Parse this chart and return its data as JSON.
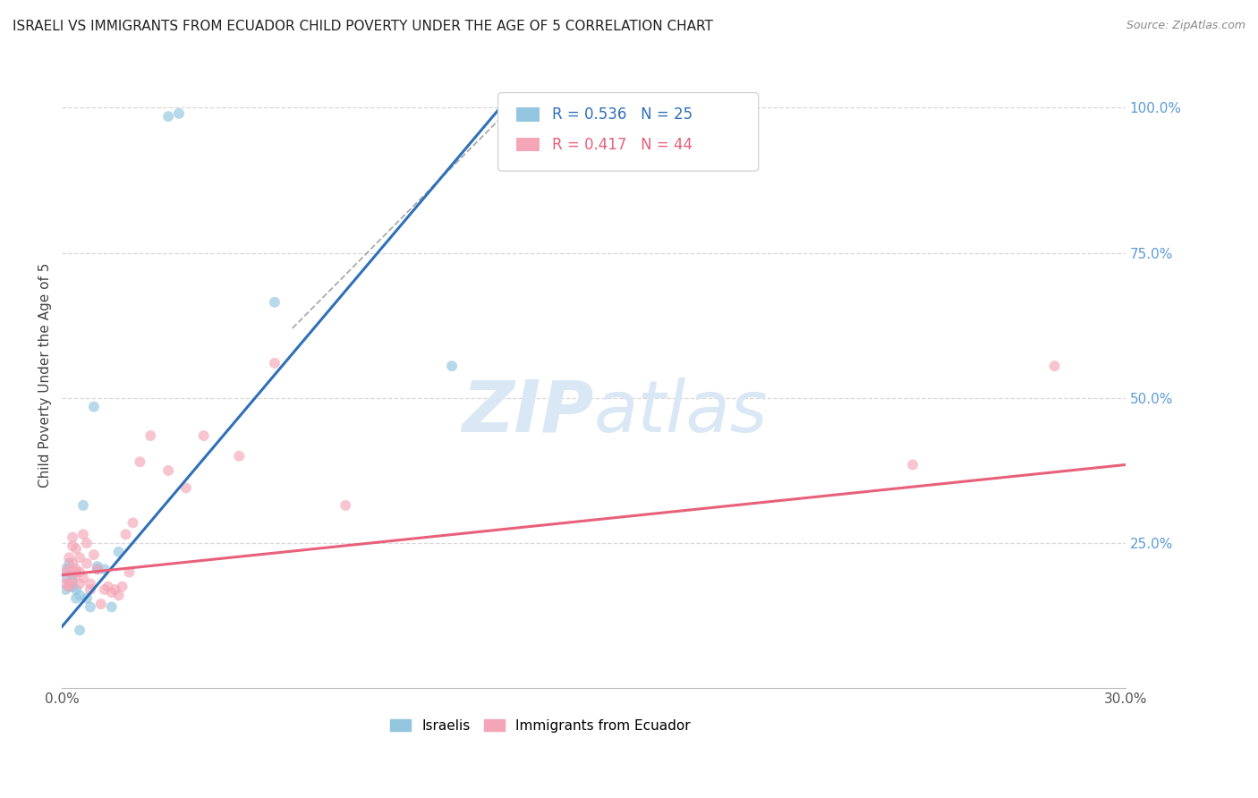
{
  "title": "ISRAELI VS IMMIGRANTS FROM ECUADOR CHILD POVERTY UNDER THE AGE OF 5 CORRELATION CHART",
  "source": "Source: ZipAtlas.com",
  "ylabel": "Child Poverty Under the Age of 5",
  "ytick_labels": [
    "100.0%",
    "75.0%",
    "50.0%",
    "25.0%"
  ],
  "ytick_values": [
    1.0,
    0.75,
    0.5,
    0.25
  ],
  "xlim": [
    0.0,
    0.3
  ],
  "ylim": [
    0.0,
    1.08
  ],
  "legend1_R": "0.536",
  "legend1_N": "25",
  "legend2_R": "0.417",
  "legend2_N": "44",
  "legend1_label": "Israelis",
  "legend2_label": "Immigrants from Ecuador",
  "blue_color": "#92c5de",
  "pink_color": "#f4a6b8",
  "line_blue": "#3070b8",
  "line_pink": "#e8607a",
  "watermark_color": "#dae8f5",
  "background_color": "#ffffff",
  "grid_color": "#d8d8d8",
  "title_color": "#222222",
  "right_ytick_color": "#5b9bd5",
  "israelis_x": [
    0.001,
    0.001,
    0.001,
    0.002,
    0.002,
    0.003,
    0.003,
    0.003,
    0.004,
    0.004,
    0.005,
    0.005,
    0.006,
    0.007,
    0.008,
    0.009,
    0.01,
    0.01,
    0.012,
    0.014,
    0.016,
    0.03,
    0.033,
    0.06,
    0.11
  ],
  "israelis_y": [
    0.17,
    0.19,
    0.205,
    0.175,
    0.215,
    0.175,
    0.185,
    0.195,
    0.17,
    0.155,
    0.16,
    0.1,
    0.315,
    0.155,
    0.14,
    0.485,
    0.205,
    0.21,
    0.205,
    0.14,
    0.235,
    0.985,
    0.99,
    0.665,
    0.555
  ],
  "ecuador_x": [
    0.001,
    0.001,
    0.002,
    0.002,
    0.002,
    0.002,
    0.003,
    0.003,
    0.003,
    0.003,
    0.004,
    0.004,
    0.004,
    0.005,
    0.005,
    0.005,
    0.006,
    0.006,
    0.007,
    0.007,
    0.008,
    0.008,
    0.009,
    0.01,
    0.011,
    0.012,
    0.013,
    0.014,
    0.015,
    0.016,
    0.017,
    0.018,
    0.019,
    0.02,
    0.022,
    0.025,
    0.03,
    0.035,
    0.04,
    0.05,
    0.06,
    0.08,
    0.24,
    0.28
  ],
  "ecuador_y": [
    0.18,
    0.2,
    0.175,
    0.18,
    0.205,
    0.225,
    0.185,
    0.215,
    0.245,
    0.26,
    0.2,
    0.205,
    0.24,
    0.18,
    0.2,
    0.225,
    0.19,
    0.265,
    0.215,
    0.25,
    0.17,
    0.18,
    0.23,
    0.205,
    0.145,
    0.17,
    0.175,
    0.165,
    0.17,
    0.16,
    0.175,
    0.265,
    0.2,
    0.285,
    0.39,
    0.435,
    0.375,
    0.345,
    0.435,
    0.4,
    0.56,
    0.315,
    0.385,
    0.555
  ],
  "blue_line_x": [
    -0.005,
    0.125
  ],
  "blue_line_y": [
    0.07,
    1.01
  ],
  "pink_line_x": [
    0.0,
    0.3
  ],
  "pink_line_y": [
    0.195,
    0.385
  ],
  "dash_line_x": [
    0.065,
    0.125
  ],
  "dash_line_y": [
    0.62,
    0.99
  ],
  "marker_size": 75,
  "marker_alpha": 0.65,
  "line_width": 2.2
}
